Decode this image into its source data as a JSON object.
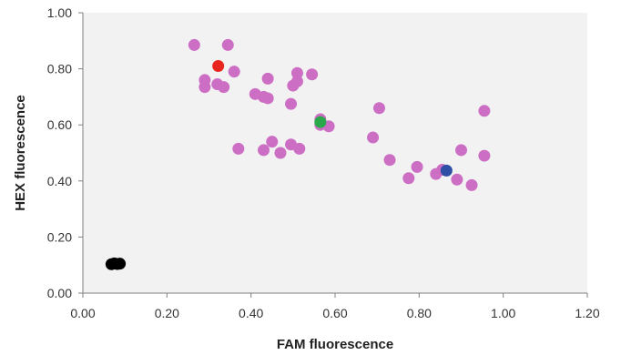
{
  "chart_data": {
    "type": "scatter",
    "title": "",
    "xlabel": "FAM fluorescence",
    "ylabel": "HEX fluorescence",
    "xlim": [
      0,
      1.2
    ],
    "ylim": [
      0,
      1.0
    ],
    "x_ticks": [
      "0.00",
      "0.20",
      "0.40",
      "0.60",
      "0.80",
      "1.00",
      "1.20"
    ],
    "y_ticks": [
      "0.00",
      "0.20",
      "0.40",
      "0.60",
      "0.80",
      "1.00"
    ],
    "grid": false,
    "plot_background": "#f2f2f2",
    "series": [
      {
        "color": "#cc6ec4",
        "points": [
          [
            0.265,
            0.885
          ],
          [
            0.345,
            0.885
          ],
          [
            0.29,
            0.76
          ],
          [
            0.29,
            0.735
          ],
          [
            0.32,
            0.745
          ],
          [
            0.335,
            0.735
          ],
          [
            0.36,
            0.79
          ],
          [
            0.44,
            0.765
          ],
          [
            0.41,
            0.71
          ],
          [
            0.43,
            0.7
          ],
          [
            0.44,
            0.695
          ],
          [
            0.51,
            0.785
          ],
          [
            0.51,
            0.755
          ],
          [
            0.5,
            0.74
          ],
          [
            0.545,
            0.78
          ],
          [
            0.495,
            0.675
          ],
          [
            0.565,
            0.62
          ],
          [
            0.565,
            0.6
          ],
          [
            0.585,
            0.595
          ],
          [
            0.37,
            0.515
          ],
          [
            0.43,
            0.51
          ],
          [
            0.45,
            0.54
          ],
          [
            0.47,
            0.5
          ],
          [
            0.495,
            0.53
          ],
          [
            0.515,
            0.515
          ],
          [
            0.705,
            0.66
          ],
          [
            0.69,
            0.555
          ],
          [
            0.73,
            0.475
          ],
          [
            0.775,
            0.41
          ],
          [
            0.795,
            0.45
          ],
          [
            0.84,
            0.425
          ],
          [
            0.855,
            0.44
          ],
          [
            0.89,
            0.405
          ],
          [
            0.9,
            0.51
          ],
          [
            0.925,
            0.385
          ],
          [
            0.955,
            0.65
          ],
          [
            0.955,
            0.49
          ]
        ]
      },
      {
        "color": "#e8261f",
        "points": [
          [
            0.322,
            0.81
          ]
        ]
      },
      {
        "color": "#2aa84a",
        "points": [
          [
            0.565,
            0.61
          ]
        ]
      },
      {
        "color": "#2f4ea6",
        "points": [
          [
            0.865,
            0.437
          ]
        ]
      },
      {
        "color": "#000000",
        "points": [
          [
            0.068,
            0.103
          ],
          [
            0.075,
            0.106
          ],
          [
            0.082,
            0.104
          ],
          [
            0.088,
            0.105
          ]
        ]
      }
    ]
  }
}
